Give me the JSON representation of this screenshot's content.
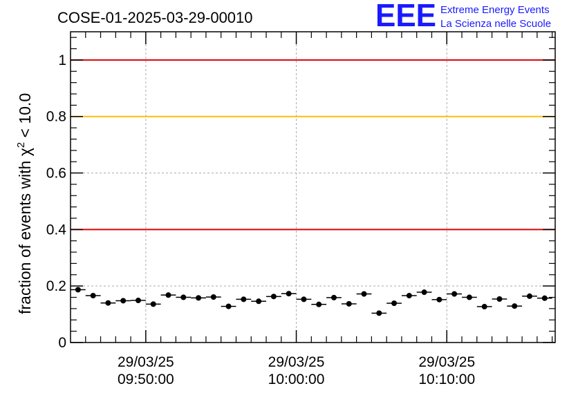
{
  "chart_data": {
    "type": "scatter",
    "title": "COSE-01-2025-03-29-00010",
    "ylabel": "fraction of events with",
    "ylabel_chi": "χ",
    "ylabel_sup": "2",
    "ylabel_tail": " < 10.0",
    "xlabel": "",
    "ylim": [
      0,
      1.1
    ],
    "y_ticks": [
      {
        "value": 0,
        "label": "0"
      },
      {
        "value": 0.2,
        "label": "0.2"
      },
      {
        "value": 0.4,
        "label": "0.4"
      },
      {
        "value": 0.6,
        "label": "0.6"
      },
      {
        "value": 0.8,
        "label": "0.8"
      },
      {
        "value": 1,
        "label": "1"
      }
    ],
    "x_ticks": [
      {
        "value": 5,
        "date": "29/03/25",
        "time": "09:50:00"
      },
      {
        "value": 15,
        "date": "29/03/25",
        "time": "10:00:00"
      },
      {
        "value": 25,
        "date": "29/03/25",
        "time": "10:10:00"
      }
    ],
    "x_range_minutes_from_0945": [
      0,
      32.2
    ],
    "grid": true,
    "reference_lines": [
      {
        "y": 1.0,
        "color": "#dd0000"
      },
      {
        "y": 0.8,
        "color": "#ffc000"
      },
      {
        "y": 0.4,
        "color": "#dd0000"
      }
    ],
    "series": [
      {
        "x": [
          0.5,
          1.5,
          2.5,
          3.5,
          4.5,
          5.5,
          6.5,
          7.5,
          8.5,
          9.5,
          10.5,
          11.5,
          12.5,
          13.5,
          14.5,
          15.5,
          16.5,
          17.5,
          18.5,
          19.5,
          20.5,
          21.5,
          22.5,
          23.5,
          24.5,
          25.5,
          26.5,
          27.5,
          28.5,
          29.5,
          30.5,
          31.5
        ],
        "values": [
          0.187,
          0.166,
          0.14,
          0.148,
          0.149,
          0.136,
          0.168,
          0.16,
          0.158,
          0.161,
          0.128,
          0.153,
          0.146,
          0.163,
          0.173,
          0.153,
          0.135,
          0.159,
          0.137,
          0.172,
          0.104,
          0.139,
          0.166,
          0.178,
          0.152,
          0.172,
          0.16,
          0.127,
          0.154,
          0.129,
          0.164,
          0.157
        ],
        "errors": [
          0.008,
          0.007,
          0.007,
          0.007,
          0.007,
          0.007,
          0.008,
          0.007,
          0.007,
          0.007,
          0.007,
          0.007,
          0.007,
          0.007,
          0.008,
          0.007,
          0.007,
          0.007,
          0.007,
          0.008,
          0.006,
          0.007,
          0.007,
          0.008,
          0.007,
          0.008,
          0.007,
          0.007,
          0.007,
          0.007,
          0.007,
          0.007
        ]
      }
    ]
  },
  "logo": {
    "big": "EEE",
    "line1": "Extreme Energy Events",
    "line2": "La Scienza nelle Scuole"
  }
}
